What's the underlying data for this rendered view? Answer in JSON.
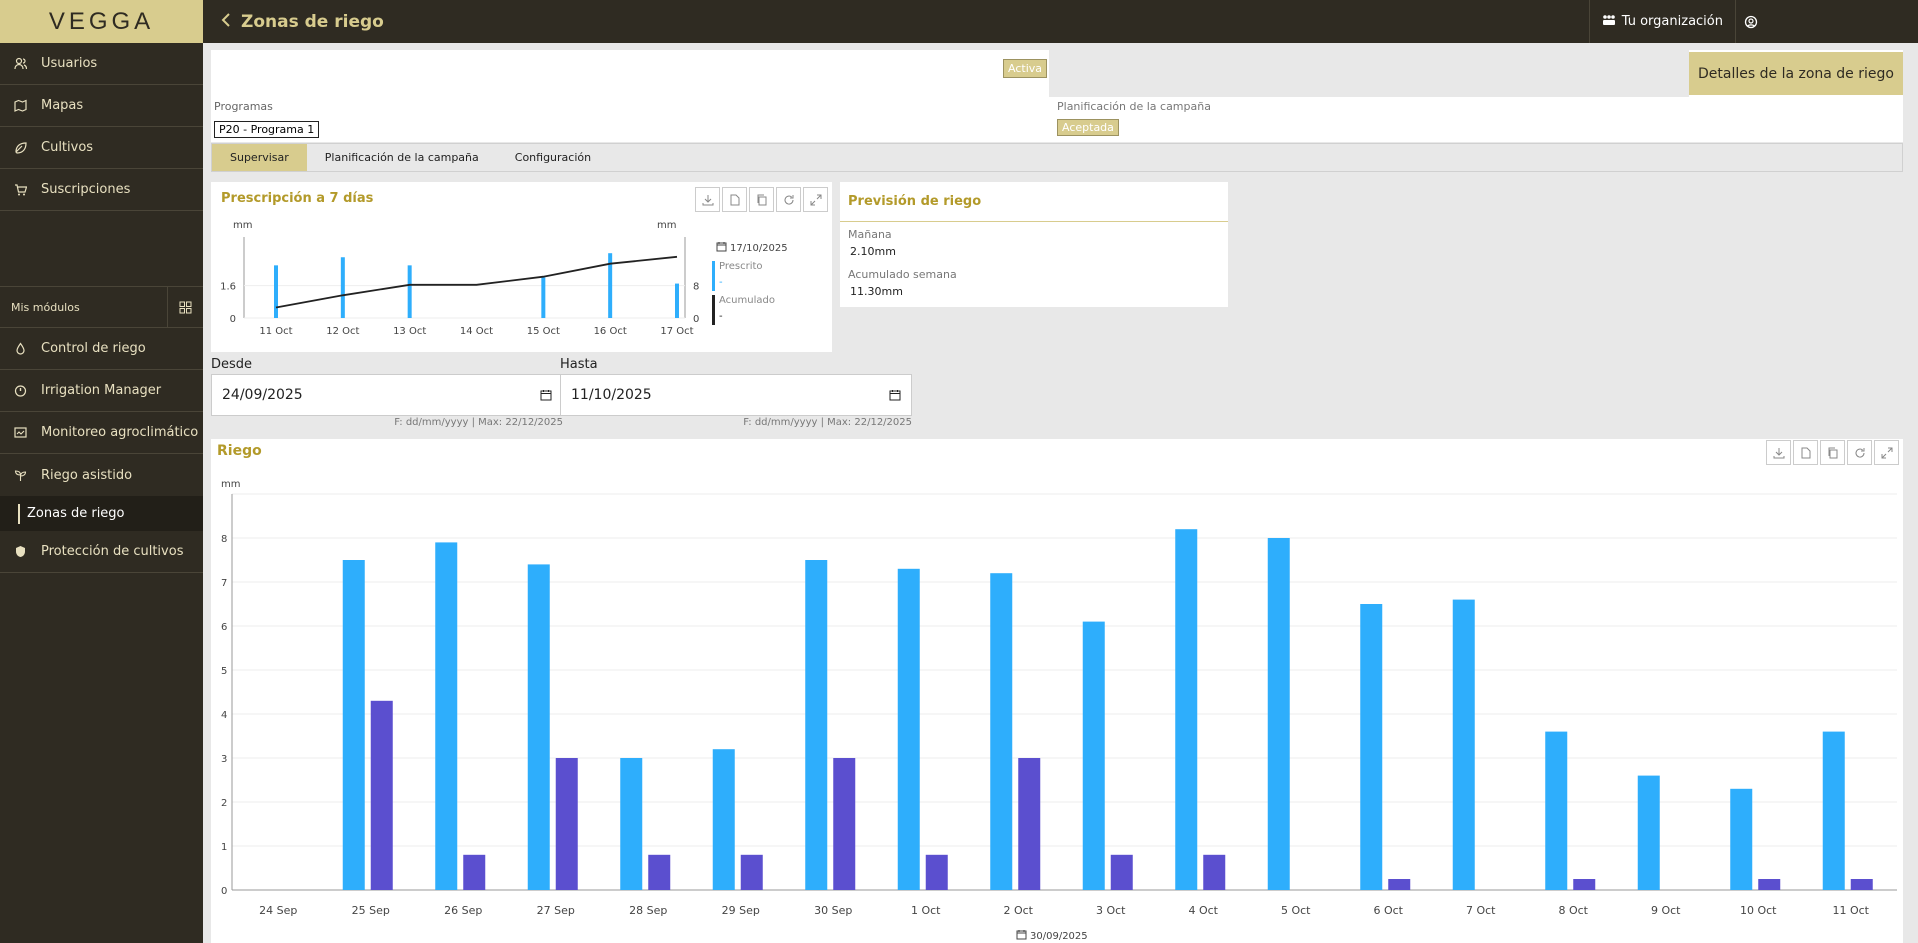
{
  "app": {
    "logo": "VEGGA"
  },
  "sidebar": {
    "items": [
      {
        "label": "Usuarios",
        "icon": "users-icon"
      },
      {
        "label": "Mapas",
        "icon": "map-icon"
      },
      {
        "label": "Cultivos",
        "icon": "leaf-icon"
      },
      {
        "label": "Suscripciones",
        "icon": "cart-icon"
      }
    ],
    "modules_label": "Mis módulos",
    "modules": [
      {
        "label": "Control de riego",
        "icon": "drop-icon"
      },
      {
        "label": "Irrigation Manager",
        "icon": "gauge-icon"
      },
      {
        "label": "Monitoreo agroclimático",
        "icon": "monitor-icon"
      },
      {
        "label": "Riego asistido",
        "icon": "sprout-icon"
      }
    ],
    "sub_item": "Zonas de riego",
    "last_item": {
      "label": "Protección de cultivos",
      "icon": "shield-icon"
    }
  },
  "topbar": {
    "title": "Zonas de riego",
    "org": "Tu organización"
  },
  "header": {
    "status": "Activa",
    "details_button": "Detalles de la zona de riego",
    "programs_label": "Programas",
    "program_value": "P20 - Programa 1",
    "planning_label": "Planificación de la campaña",
    "planning_value": "Aceptada"
  },
  "tabs": [
    "Supervisar",
    "Planificación de la campaña",
    "Configuración"
  ],
  "prescription": {
    "title": "Prescripción a 7 días",
    "date": "17/10/2025",
    "legend_prescribed": "Prescrito",
    "legend_accumulated": "Acumulado",
    "legend_prescribed_value": "-",
    "legend_accumulated_value": "-"
  },
  "forecast": {
    "title": "Previsión de riego",
    "tomorrow_label": "Mañana",
    "tomorrow_value": "2.10mm",
    "week_label": "Acumulado semana",
    "week_value": "11.30mm"
  },
  "dates": {
    "from_label": "Desde",
    "from_value": "24/09/2025",
    "to_label": "Hasta",
    "to_value": "11/10/2025",
    "hint": "F: dd/mm/yyyy | Max: 22/12/2025"
  },
  "riego": {
    "title": "Riego",
    "footer_date": "30/09/2025"
  },
  "colors": {
    "accent": "#d8cc8e",
    "title": "#b39a2a",
    "sidebar": "#2f2b22",
    "blue": "#2eaefc",
    "purple": "#5b4fcf"
  },
  "chart_data": [
    {
      "type": "bar",
      "title": "Prescripción a 7 días",
      "categories": [
        "11 Oct",
        "12 Oct",
        "13 Oct",
        "14 Oct",
        "15 Oct",
        "16 Oct",
        "17 Oct"
      ],
      "ylabel_left": "mm",
      "ylabel_right": "mm",
      "left_ticks": [
        "0",
        "1.6"
      ],
      "right_ticks": [
        "0",
        "8"
      ],
      "ylim_left": [
        0,
        4
      ],
      "ylim_right": [
        0,
        20
      ],
      "series": [
        {
          "name": "Prescrito",
          "type": "bar",
          "values": [
            2.6,
            3.0,
            2.6,
            0,
            2.0,
            3.2,
            1.7
          ]
        },
        {
          "name": "Acumulado",
          "type": "line",
          "values": [
            2.6,
            5.6,
            8.2,
            8.2,
            10.2,
            13.4,
            15.1
          ]
        }
      ]
    },
    {
      "type": "bar",
      "title": "Riego",
      "ylabel": "mm",
      "ylim": [
        0,
        9
      ],
      "yticks": [
        "0",
        "1",
        "2",
        "3",
        "4",
        "5",
        "6",
        "7",
        "8"
      ],
      "categories": [
        "24 Sep",
        "25 Sep",
        "26 Sep",
        "27 Sep",
        "28 Sep",
        "29 Sep",
        "30 Sep",
        "1 Oct",
        "2 Oct",
        "3 Oct",
        "4 Oct",
        "5 Oct",
        "6 Oct",
        "7 Oct",
        "8 Oct",
        "9 Oct",
        "10 Oct",
        "11 Oct"
      ],
      "series": [
        {
          "values": [
            0,
            7.5,
            7.9,
            7.4,
            3.0,
            3.2,
            7.5,
            7.3,
            7.2,
            6.1,
            8.2,
            8.0,
            6.5,
            6.6,
            3.6,
            2.6,
            2.3,
            3.6
          ]
        },
        {
          "values": [
            0,
            4.3,
            0.8,
            3.0,
            0.8,
            0.8,
            3.0,
            0.8,
            3.0,
            0.8,
            0.8,
            0,
            0.25,
            0,
            0.25,
            0,
            0.25,
            0.25
          ]
        }
      ]
    }
  ]
}
